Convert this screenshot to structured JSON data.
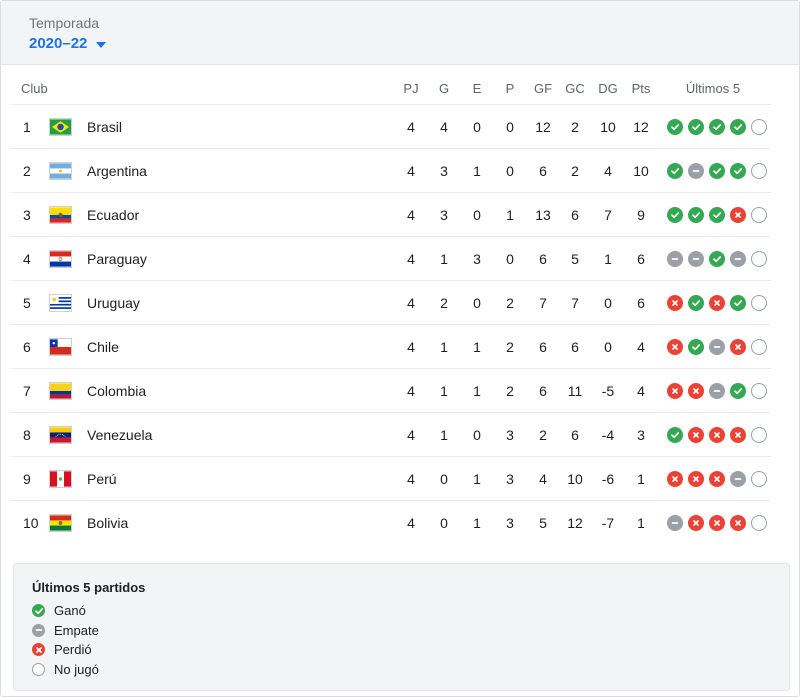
{
  "season": {
    "label": "Temporada",
    "value": "2020–22"
  },
  "table": {
    "headers": {
      "club": "Club",
      "pj": "PJ",
      "g": "G",
      "e": "E",
      "p": "P",
      "gf": "GF",
      "gc": "GC",
      "dg": "DG",
      "pts": "Pts",
      "last5": "Últimos 5"
    },
    "rows": [
      {
        "pos": "1",
        "club": "Brasil",
        "flag": "brazil-flag",
        "pj": "4",
        "g": "4",
        "e": "0",
        "p": "0",
        "gf": "12",
        "gc": "2",
        "dg": "10",
        "pts": "12",
        "last5": [
          "W",
          "W",
          "W",
          "W",
          "N"
        ]
      },
      {
        "pos": "2",
        "club": "Argentina",
        "flag": "argentina-flag",
        "pj": "4",
        "g": "3",
        "e": "1",
        "p": "0",
        "gf": "6",
        "gc": "2",
        "dg": "4",
        "pts": "10",
        "last5": [
          "W",
          "D",
          "W",
          "W",
          "N"
        ]
      },
      {
        "pos": "3",
        "club": "Ecuador",
        "flag": "ecuador-flag",
        "pj": "4",
        "g": "3",
        "e": "0",
        "p": "1",
        "gf": "13",
        "gc": "6",
        "dg": "7",
        "pts": "9",
        "last5": [
          "W",
          "W",
          "W",
          "L",
          "N"
        ]
      },
      {
        "pos": "4",
        "club": "Paraguay",
        "flag": "paraguay-flag",
        "pj": "4",
        "g": "1",
        "e": "3",
        "p": "0",
        "gf": "6",
        "gc": "5",
        "dg": "1",
        "pts": "6",
        "last5": [
          "D",
          "D",
          "W",
          "D",
          "N"
        ]
      },
      {
        "pos": "5",
        "club": "Uruguay",
        "flag": "uruguay-flag",
        "pj": "4",
        "g": "2",
        "e": "0",
        "p": "2",
        "gf": "7",
        "gc": "7",
        "dg": "0",
        "pts": "6",
        "last5": [
          "L",
          "W",
          "L",
          "W",
          "N"
        ]
      },
      {
        "pos": "6",
        "club": "Chile",
        "flag": "chile-flag",
        "pj": "4",
        "g": "1",
        "e": "1",
        "p": "2",
        "gf": "6",
        "gc": "6",
        "dg": "0",
        "pts": "4",
        "last5": [
          "L",
          "W",
          "D",
          "L",
          "N"
        ]
      },
      {
        "pos": "7",
        "club": "Colombia",
        "flag": "colombia-flag",
        "pj": "4",
        "g": "1",
        "e": "1",
        "p": "2",
        "gf": "6",
        "gc": "11",
        "dg": "-5",
        "pts": "4",
        "last5": [
          "L",
          "L",
          "D",
          "W",
          "N"
        ]
      },
      {
        "pos": "8",
        "club": "Venezuela",
        "flag": "venezuela-flag",
        "pj": "4",
        "g": "1",
        "e": "0",
        "p": "3",
        "gf": "2",
        "gc": "6",
        "dg": "-4",
        "pts": "3",
        "last5": [
          "W",
          "L",
          "L",
          "L",
          "N"
        ]
      },
      {
        "pos": "9",
        "club": "Perú",
        "flag": "peru-flag",
        "pj": "4",
        "g": "0",
        "e": "1",
        "p": "3",
        "gf": "4",
        "gc": "10",
        "dg": "-6",
        "pts": "1",
        "last5": [
          "L",
          "L",
          "L",
          "D",
          "N"
        ]
      },
      {
        "pos": "10",
        "club": "Bolivia",
        "flag": "bolivia-flag",
        "pj": "4",
        "g": "0",
        "e": "1",
        "p": "3",
        "gf": "5",
        "gc": "12",
        "dg": "-7",
        "pts": "1",
        "last5": [
          "D",
          "L",
          "L",
          "L",
          "N"
        ]
      }
    ]
  },
  "legend": {
    "title": "Últimos 5 partidos",
    "items": [
      {
        "type": "W",
        "label": "Ganó"
      },
      {
        "type": "D",
        "label": "Empate"
      },
      {
        "type": "L",
        "label": "Perdió"
      },
      {
        "type": "N",
        "label": "No jugó"
      }
    ]
  },
  "colors": {
    "accent": "#1a73e8",
    "win": "#34a853",
    "draw": "#9aa0a6",
    "loss": "#ea4335"
  }
}
